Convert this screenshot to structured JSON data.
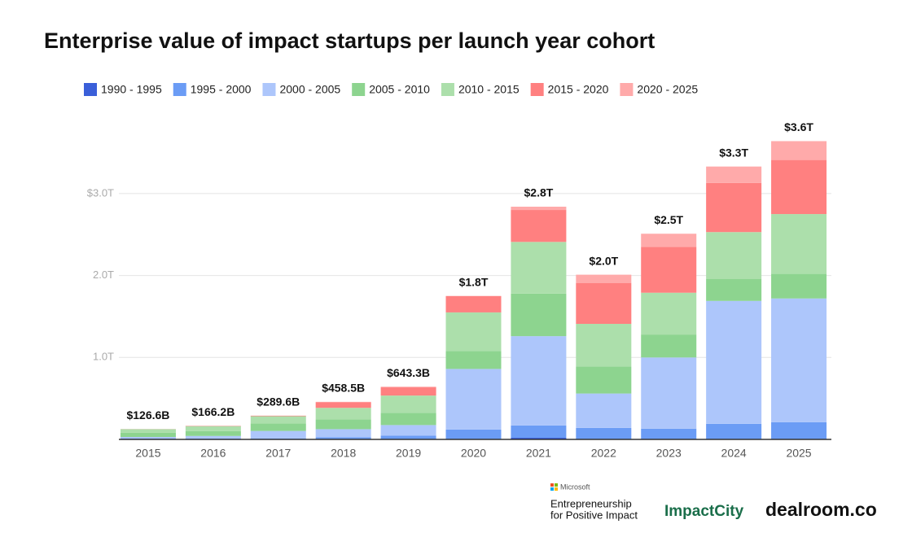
{
  "chart_data": {
    "type": "stacked_bar",
    "title": "Enterprise value of impact startups per launch year cohort",
    "categories": [
      "2015",
      "2016",
      "2017",
      "2018",
      "2019",
      "2020",
      "2021",
      "2022",
      "2023",
      "2024",
      "2025"
    ],
    "series": [
      {
        "name": "1990 - 1995",
        "color": "#3a5fd9",
        "values": [
          0.002,
          0.002,
          0.003,
          0.005,
          0.005,
          0.005,
          0.02,
          0.005,
          0.005,
          0.005,
          0.005
        ]
      },
      {
        "name": "1995 - 2000",
        "color": "#6b9cf5",
        "values": [
          0.008,
          0.01,
          0.01,
          0.02,
          0.04,
          0.115,
          0.15,
          0.135,
          0.125,
          0.185,
          0.205
        ]
      },
      {
        "name": "2000 - 2005",
        "color": "#adc6fb",
        "values": [
          0.02,
          0.03,
          0.09,
          0.1,
          0.13,
          0.74,
          1.09,
          0.42,
          0.87,
          1.5,
          1.51
        ]
      },
      {
        "name": "2005 - 2010",
        "color": "#8dd48f",
        "values": [
          0.05,
          0.06,
          0.09,
          0.12,
          0.15,
          0.22,
          0.52,
          0.33,
          0.28,
          0.27,
          0.3
        ]
      },
      {
        "name": "2010 - 2015",
        "color": "#acdfab",
        "values": [
          0.045,
          0.06,
          0.09,
          0.14,
          0.21,
          0.47,
          0.63,
          0.52,
          0.51,
          0.57,
          0.73
        ]
      },
      {
        "name": "2015 - 2020",
        "color": "#ff8080",
        "values": [
          0.0016,
          0.0042,
          0.0066,
          0.07,
          0.1,
          0.2,
          0.39,
          0.5,
          0.56,
          0.6,
          0.66
        ]
      },
      {
        "name": "2020 - 2025",
        "color": "#ffaaaa",
        "values": [
          0,
          0,
          0,
          0.0035,
          0.0083,
          0,
          0.04,
          0.1,
          0.16,
          0.2,
          0.23
        ]
      }
    ],
    "totals": {
      "values": [
        0.1266,
        0.1662,
        0.2896,
        0.4585,
        0.6433,
        1.8,
        2.8,
        2.0,
        2.5,
        3.3,
        3.6
      ],
      "value_labels": [
        "$126.6B",
        "$166.2B",
        "$289.6B",
        "$458.5B",
        "$643.3B",
        "$1.8T",
        "$2.8T",
        "$2.0T",
        "$2.5T",
        "$3.3T",
        "$3.6T"
      ]
    },
    "ylim": [
      0,
      4
    ],
    "yticks": [
      {
        "value": 1,
        "label": "1.0T"
      },
      {
        "value": 2,
        "label": "2.0T"
      },
      {
        "value": 3,
        "label": "$3.0T"
      }
    ],
    "grid": true
  },
  "logos": {
    "microsoft": "Microsoft",
    "program": [
      "Entrepreneurship",
      "for Positive Impact"
    ],
    "impactcity": "ImpactCity",
    "dealroom": "dealroom.co"
  }
}
